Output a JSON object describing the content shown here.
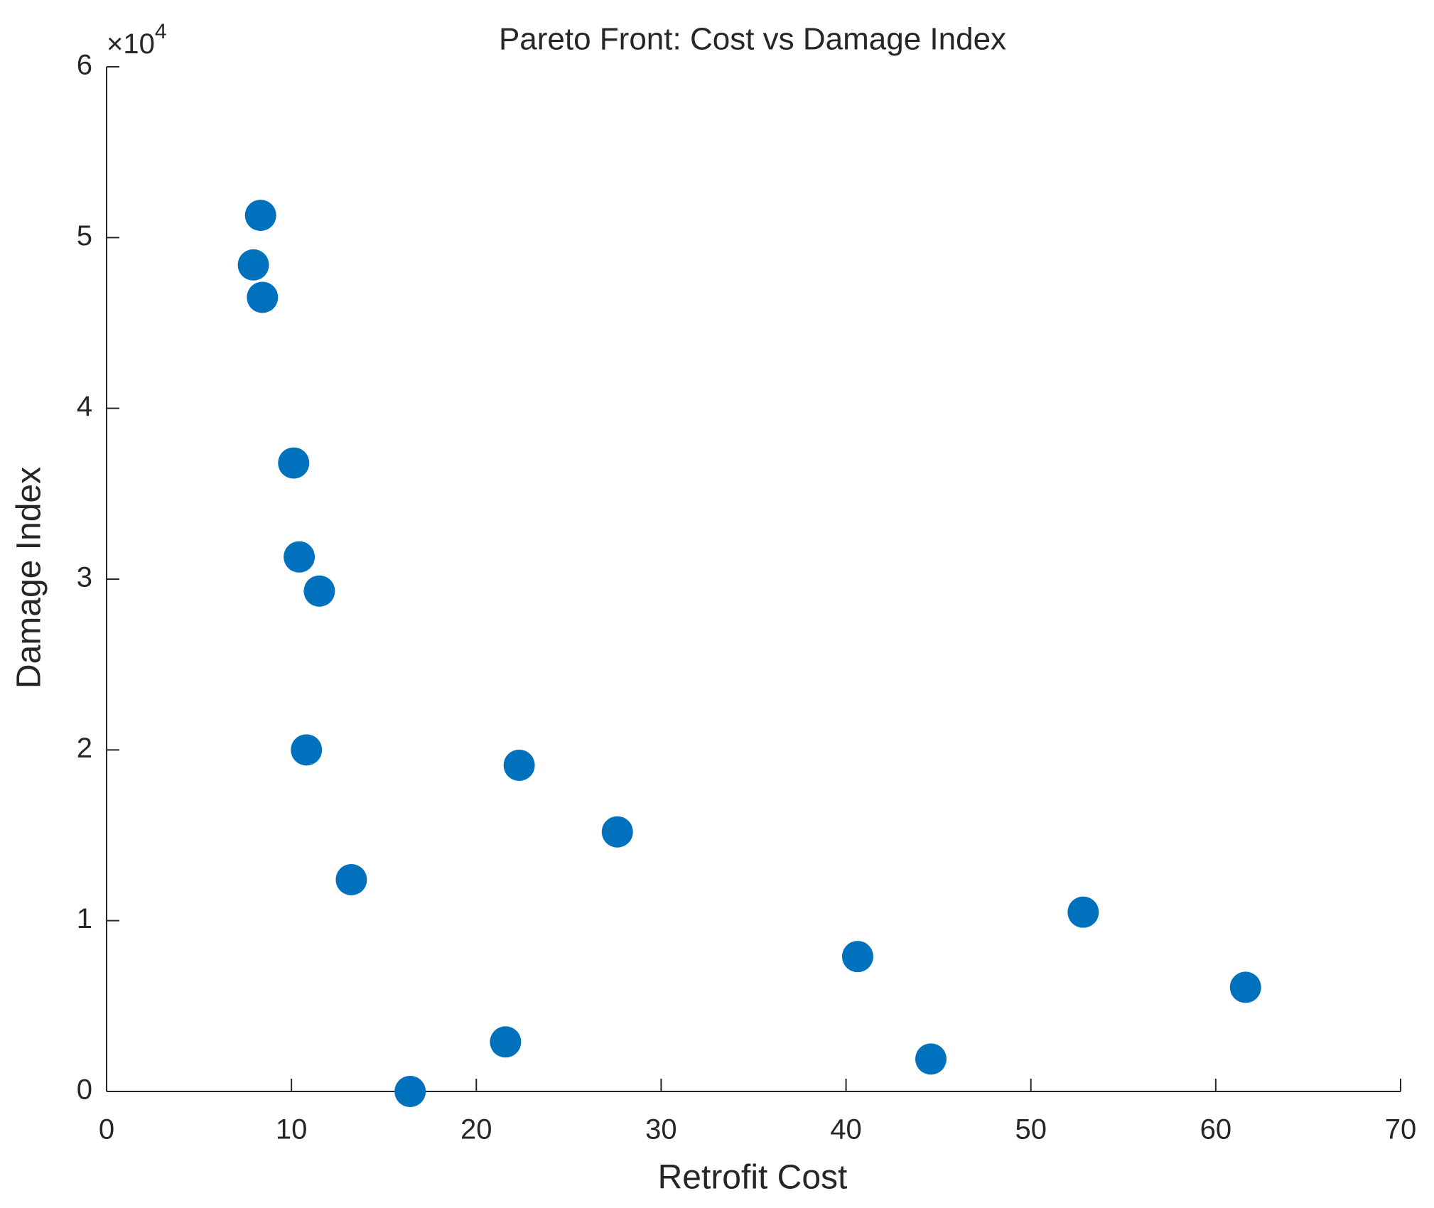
{
  "chart_data": {
    "type": "scatter",
    "title": "Pareto Front: Cost vs Damage Index",
    "x_label": "Retrofit Cost",
    "y_label": "Damage Index",
    "y_multiplier": {
      "base": "×10",
      "exponent": "4"
    },
    "color": "#0072bd",
    "x": [
      8.33,
      7.94,
      8.43,
      10.12,
      10.42,
      11.51,
      10.81,
      22.32,
      27.63,
      13.24,
      52.83,
      40.63,
      61.61,
      21.58,
      44.59,
      16.42
    ],
    "values": [
      51300,
      48400,
      46500,
      36800,
      31300,
      29300,
      20000,
      19100,
      15200,
      12400,
      10500,
      7900,
      6100,
      2900,
      1900,
      0
    ],
    "xlim": [
      0,
      70
    ],
    "xticks": [
      0,
      10,
      20,
      30,
      40,
      50,
      60,
      70
    ],
    "ylim": [
      0,
      60000
    ],
    "yticks": [
      0,
      {
        "value": 10000,
        "label": "1"
      },
      {
        "value": 20000,
        "label": "2"
      },
      {
        "value": 30000,
        "label": "3"
      },
      {
        "value": 40000,
        "label": "4"
      },
      {
        "value": 50000,
        "label": "5"
      },
      {
        "value": 60000,
        "label": "6"
      }
    ],
    "grid": false
  }
}
